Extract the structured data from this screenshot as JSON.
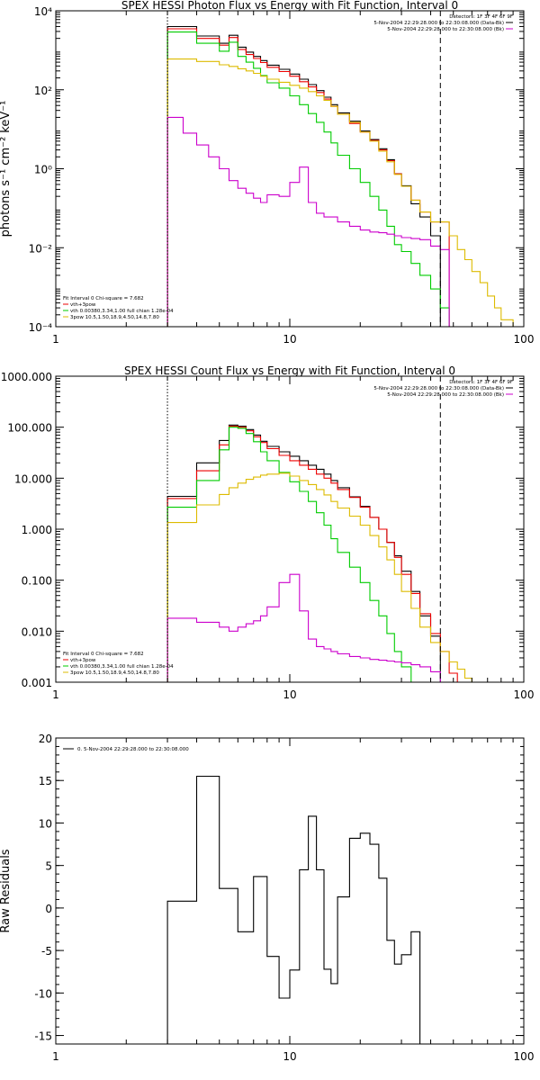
{
  "chart_data": [
    {
      "type": "line",
      "title": "SPEX HESSI Photon Flux vs Energy with Fit Function, Interval 0",
      "ylabel": "photons s⁻¹ cm⁻² keV⁻¹",
      "xlabel": "",
      "xscale": "log",
      "yscale": "log",
      "xlim": [
        1,
        100
      ],
      "ylim": [
        0.0001,
        10000
      ],
      "x_tick_labels": [
        "1",
        "10",
        "100"
      ],
      "y_tick_labels": [
        "10⁻⁴",
        "10⁻²",
        "10⁰",
        "10²",
        "10⁴"
      ],
      "y_tick_values": [
        0.0001,
        0.01,
        1,
        100,
        10000
      ],
      "vlines": [
        {
          "x": 3,
          "style": "dotted",
          "color": "#000000"
        },
        {
          "x": 44,
          "style": "dashed",
          "color": "#000000"
        }
      ],
      "legend_header": "Detectors: 1F 3F 4F 6F 9F",
      "legend_lines": [
        {
          "text": "5-Nov-2004 22:29:28.000 to 22:30:08.000 (Data-Bk)",
          "color": "#000000"
        },
        {
          "text": "5-Nov-2004 22:29:28.000 to 22:30:08.000 (Bk)",
          "color": "#cc00cc"
        }
      ],
      "fit_info": {
        "title": "Fit Interval 0   Chi-square = 7.682",
        "lines": [
          {
            "text": "vth+3pow",
            "color": "#ee0000"
          },
          {
            "text": "vth 0.00380,3.34,1.00  full chian 1.28e-04",
            "color": "#00cc00"
          },
          {
            "text": "3pow 10.5,1.50,18.9,4.50,14.8,7.80",
            "color": "#ddbb00"
          }
        ]
      },
      "edges": [
        3.0,
        3.5,
        4.0,
        4.5,
        5.0,
        5.5,
        6.0,
        6.5,
        7.0,
        7.5,
        8.0,
        9.0,
        10.0,
        11.0,
        12.0,
        13.0,
        14.0,
        15.0,
        16.0,
        18.0,
        20.0,
        22.0,
        24.0,
        26.0,
        28.0,
        30.0,
        33.0,
        36.0,
        40.0,
        44.0,
        48.0,
        52.0,
        56.0,
        60.0,
        65.0,
        70.0,
        75.0,
        80.0,
        90.0,
        100.0
      ],
      "series": [
        {
          "name": "Data-Bk",
          "color": "#000000",
          "values": [
            4000,
            4000,
            2300,
            2300,
            1500,
            2400,
            1200,
            900,
            700,
            550,
            420,
            330,
            250,
            185,
            135,
            95,
            65,
            42,
            26,
            16,
            9,
            5.5,
            3.2,
            1.7,
            0.75,
            0.37,
            0.13,
            0.06,
            0.02,
            null,
            null,
            null,
            null,
            null,
            null,
            null,
            null,
            null,
            null
          ]
        },
        {
          "name": "vth+3pow",
          "color": "#ee0000",
          "values": [
            3500,
            3500,
            2000,
            2000,
            1350,
            2100,
            1050,
            780,
            620,
            490,
            370,
            290,
            220,
            160,
            118,
            85,
            58,
            38,
            24,
            14,
            8.5,
            5.2,
            3.0,
            1.6,
            0.74,
            0.36,
            0.16,
            0.08,
            0.045,
            0.045,
            null,
            null,
            null,
            null,
            null,
            null,
            null,
            null,
            null
          ]
        },
        {
          "name": "vth",
          "color": "#00cc00",
          "values": [
            2900,
            2900,
            1500,
            1500,
            950,
            1600,
            700,
            500,
            350,
            230,
            150,
            110,
            70,
            42,
            25,
            15,
            8.5,
            4.5,
            2.2,
            1.0,
            0.45,
            0.2,
            0.09,
            0.035,
            0.012,
            0.008,
            0.004,
            0.002,
            0.0009,
            0.0003,
            null,
            null,
            null,
            null,
            null,
            null,
            null,
            null,
            null
          ]
        },
        {
          "name": "3pow",
          "color": "#ddbb00",
          "values": [
            600,
            600,
            520,
            520,
            430,
            390,
            340,
            300,
            260,
            220,
            185,
            155,
            130,
            110,
            90,
            70,
            54,
            38,
            24,
            15,
            8.5,
            5.0,
            2.8,
            1.5,
            0.72,
            0.36,
            0.16,
            0.08,
            0.045,
            0.045,
            0.02,
            0.009,
            0.005,
            0.0025,
            0.0013,
            0.0006,
            0.0003,
            0.00015,
            0.0001
          ]
        },
        {
          "name": "Bk",
          "color": "#cc00cc",
          "values": [
            20,
            8,
            4,
            2,
            1.0,
            0.5,
            0.32,
            0.24,
            0.18,
            0.14,
            0.22,
            0.2,
            0.45,
            1.1,
            0.14,
            0.075,
            0.06,
            0.06,
            0.045,
            0.035,
            0.028,
            0.025,
            0.024,
            0.022,
            0.02,
            0.018,
            0.017,
            0.016,
            0.011,
            0.009,
            null,
            null,
            null,
            null,
            null,
            null,
            null,
            null,
            null
          ]
        }
      ]
    },
    {
      "type": "line",
      "title": "SPEX HESSI Count Flux vs Energy with Fit Function, Interval 0",
      "ylabel": "",
      "xlabel": "",
      "xscale": "log",
      "yscale": "log",
      "xlim": [
        1,
        100
      ],
      "ylim": [
        0.001,
        1000
      ],
      "x_tick_labels": [
        "1",
        "10",
        "100"
      ],
      "y_tick_labels": [
        "0.001",
        "0.010",
        "0.100",
        "1.000",
        "10.000",
        "100.000",
        "1000.000"
      ],
      "y_tick_values": [
        0.001,
        0.01,
        0.1,
        1,
        10,
        100,
        1000
      ],
      "vlines": [
        {
          "x": 3,
          "style": "dotted",
          "color": "#000000"
        },
        {
          "x": 44,
          "style": "dashed",
          "color": "#000000"
        }
      ],
      "legend_header": "Detectors: 1F 3F 4F 6F 9F",
      "legend_lines": [
        {
          "text": "5-Nov-2004 22:29:28.000 to 22:30:08.000 (Data-Bk)",
          "color": "#000000"
        },
        {
          "text": "5-Nov-2004 22:29:28.000 to 22:30:08.000 (Bk)",
          "color": "#cc00cc"
        }
      ],
      "fit_info": {
        "title": "Fit Interval 0   Chi-square = 7.682",
        "lines": [
          {
            "text": "vth+3pow",
            "color": "#ee0000"
          },
          {
            "text": "vth 0.00380,3.34,1.00  full chian 1.28e-04",
            "color": "#00cc00"
          },
          {
            "text": "3pow 10.5,1.50,18.9,4.50,14.8,7.80",
            "color": "#ddbb00"
          }
        ]
      },
      "edges": [
        3.0,
        4.0,
        5.0,
        5.5,
        6.0,
        6.5,
        7.0,
        7.5,
        8.0,
        9.0,
        10.0,
        11.0,
        12.0,
        13.0,
        14.0,
        15.0,
        16.0,
        18.0,
        20.0,
        22.0,
        24.0,
        26.0,
        28.0,
        30.0,
        33.0,
        36.0,
        40.0,
        44.0,
        48.0,
        52.0,
        56.0,
        60.0
      ],
      "series": [
        {
          "name": "Data-Bk",
          "color": "#000000",
          "values": [
            4.4,
            20,
            55,
            110,
            105,
            90,
            70,
            53,
            42,
            33,
            27,
            22,
            18,
            15,
            12,
            9.0,
            6.5,
            4.3,
            2.8,
            1.7,
            1.0,
            0.55,
            0.3,
            0.15,
            0.06,
            0.02,
            0.008,
            null,
            null,
            null,
            null
          ]
        },
        {
          "name": "vth+3pow",
          "color": "#ee0000",
          "values": [
            4.0,
            14,
            45,
            105,
            100,
            85,
            65,
            50,
            38,
            28,
            22,
            18,
            15,
            12,
            10,
            8,
            6,
            4.2,
            2.7,
            1.7,
            1.0,
            0.55,
            0.28,
            0.13,
            0.055,
            0.022,
            0.009,
            0.004,
            0.0015,
            null,
            null
          ]
        },
        {
          "name": "vth",
          "color": "#00cc00",
          "values": [
            2.7,
            9.0,
            36,
            100,
            95,
            75,
            52,
            33,
            22,
            13,
            8.5,
            5.5,
            3.5,
            2.1,
            1.2,
            0.65,
            0.35,
            0.18,
            0.09,
            0.04,
            0.02,
            0.009,
            0.004,
            0.002,
            null,
            null,
            null,
            null,
            null,
            null,
            null
          ]
        },
        {
          "name": "3pow",
          "color": "#ddbb00",
          "values": [
            1.35,
            3.0,
            4.8,
            6.5,
            8.0,
            9.5,
            10.5,
            11.5,
            12.0,
            12.5,
            11.0,
            9.0,
            7.5,
            6.0,
            4.7,
            3.5,
            2.6,
            1.8,
            1.2,
            0.75,
            0.45,
            0.25,
            0.13,
            0.06,
            0.028,
            0.012,
            0.006,
            0.004,
            0.0025,
            0.0018,
            0.0012
          ]
        },
        {
          "name": "Bk",
          "color": "#cc00cc",
          "values": [
            0.018,
            0.015,
            0.012,
            0.01,
            0.012,
            0.014,
            0.016,
            0.02,
            0.03,
            0.09,
            0.13,
            0.025,
            0.007,
            0.005,
            0.0045,
            0.004,
            0.0036,
            0.0032,
            0.003,
            0.0028,
            0.0027,
            0.0026,
            0.0025,
            0.0024,
            0.0022,
            0.002,
            0.0016,
            null,
            null,
            null,
            null
          ]
        }
      ]
    },
    {
      "type": "line",
      "title": "",
      "ylabel": "Raw Residuals",
      "xlabel": "",
      "xscale": "log",
      "yscale": "linear",
      "xlim": [
        1,
        100
      ],
      "ylim": [
        -16,
        20
      ],
      "x_tick_labels": [
        "1",
        "10",
        "100"
      ],
      "y_tick_labels": [
        "-15",
        "-10",
        "-5",
        "0",
        "5",
        "10",
        "15",
        "20"
      ],
      "y_tick_values": [
        -15,
        -10,
        -5,
        0,
        5,
        10,
        15,
        20
      ],
      "legend_lines": [
        {
          "text": "0. 5-Nov-2004 22:29:28.000 to 22:30:08.000",
          "color": "#000000"
        }
      ],
      "edges": [
        3.0,
        4.0,
        5.0,
        6.0,
        7.0,
        8.0,
        9.0,
        10.0,
        11.0,
        12.0,
        13.0,
        14.0,
        15.0,
        16.0,
        18.0,
        20.0,
        22.0,
        24.0,
        26.0,
        28.0,
        30.0,
        33.0,
        36.0,
        40.0,
        44.0
      ],
      "series": [
        {
          "name": "0. 5-Nov-2004 22:29:28.000 to 22:30:08.000",
          "color": "#000000",
          "values": [
            0.8,
            15.5,
            2.3,
            -2.8,
            3.7,
            -5.7,
            -10.6,
            -7.3,
            4.5,
            10.8,
            4.5,
            -7.2,
            -8.9,
            1.3,
            8.2,
            8.8,
            7.5,
            3.5,
            -3.8,
            -6.6,
            -5.5,
            -2.8,
            null,
            null
          ]
        }
      ]
    }
  ]
}
